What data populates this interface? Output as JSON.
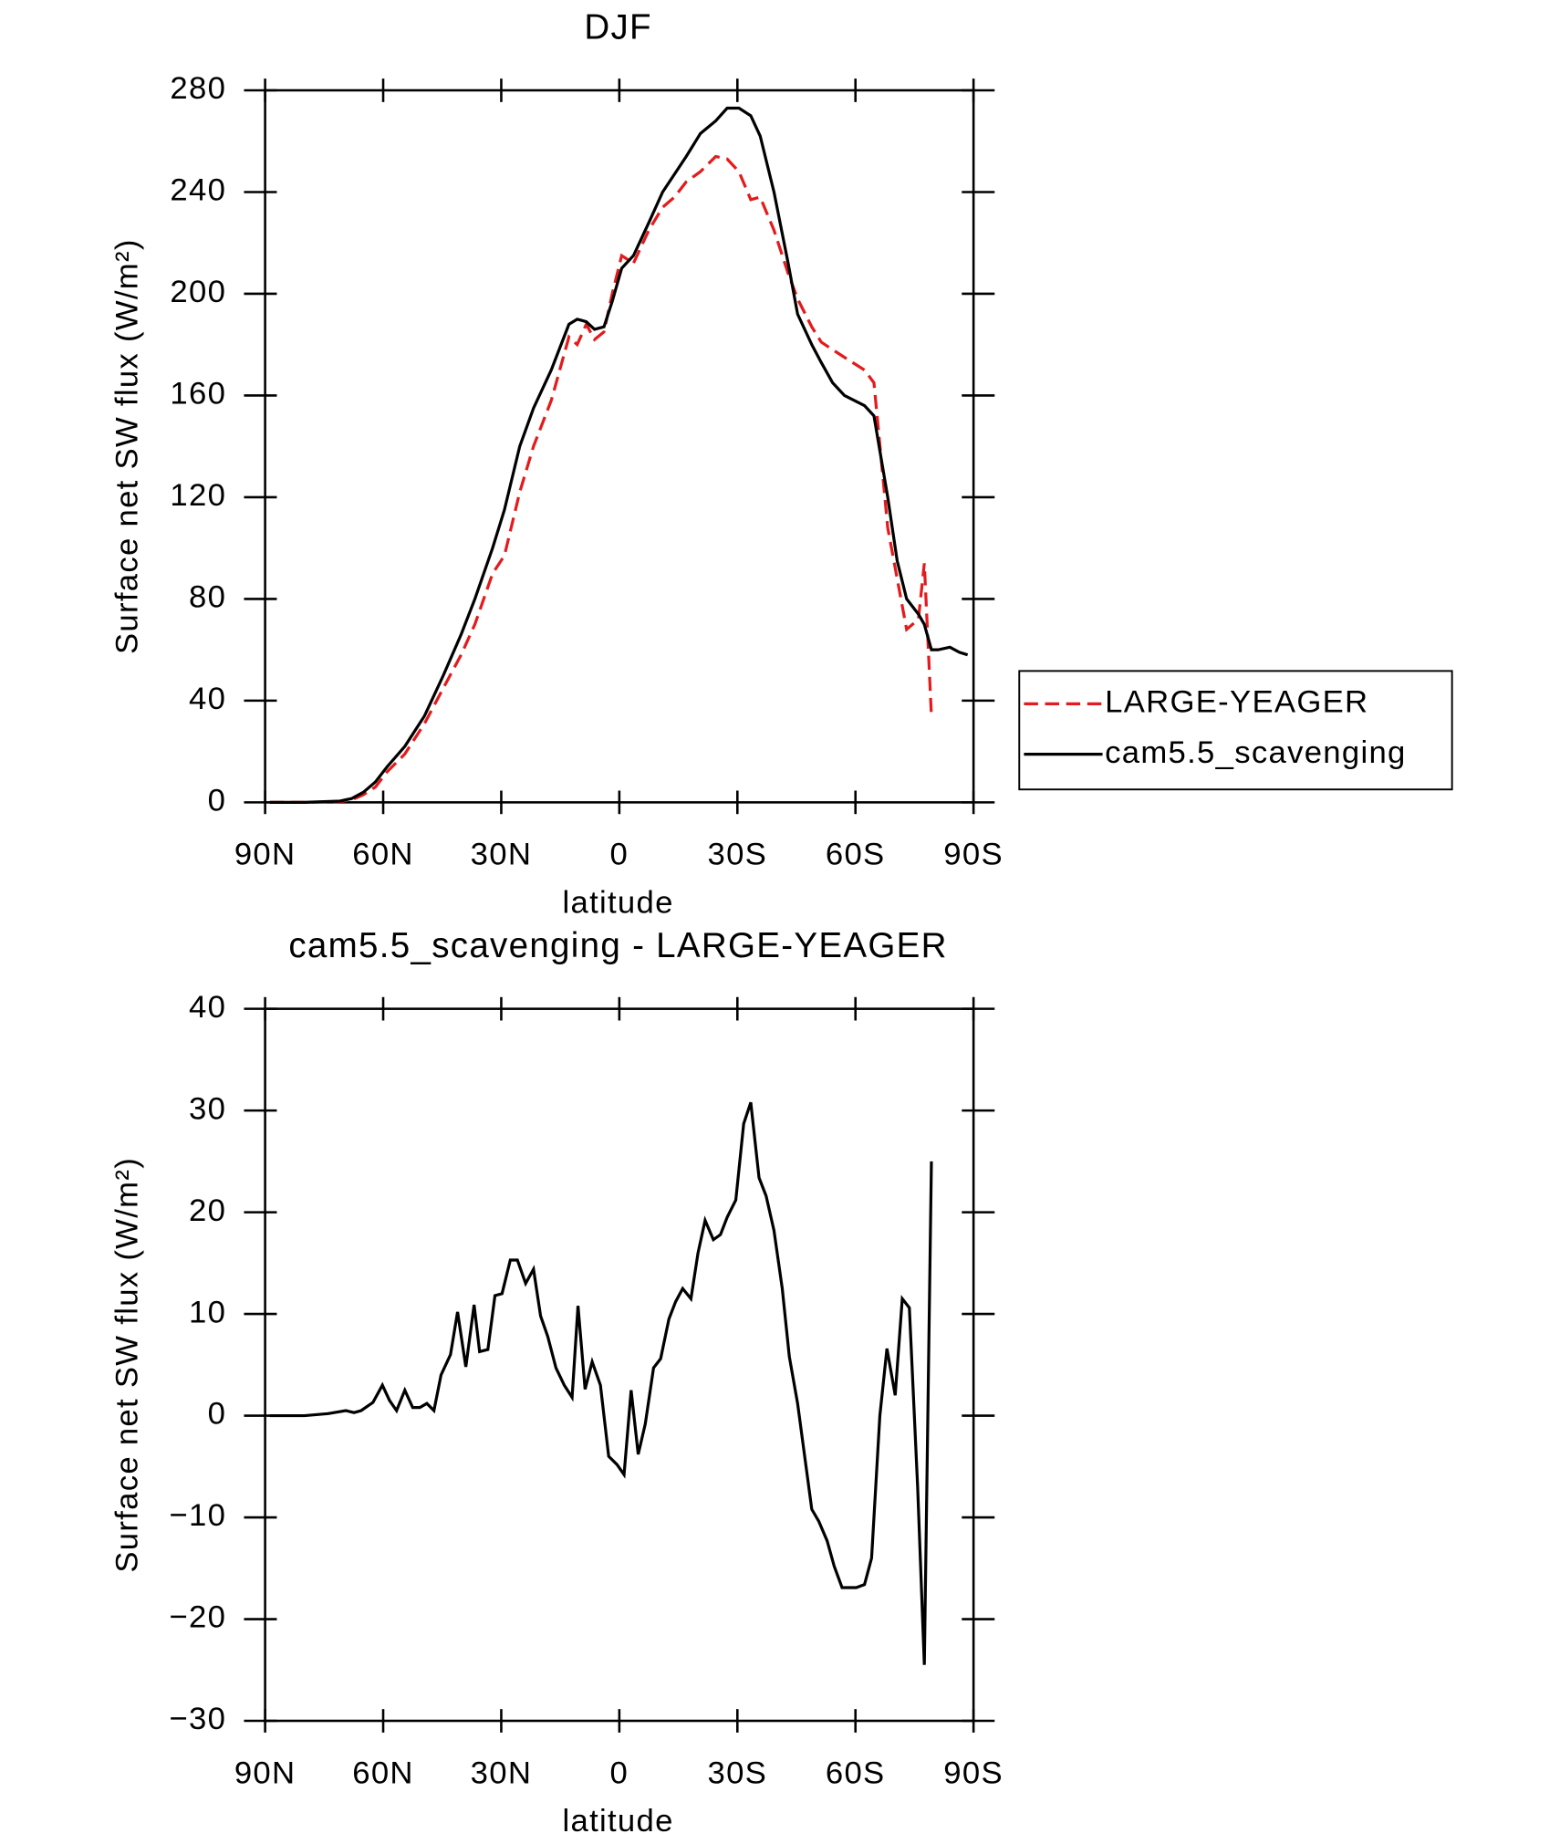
{
  "chart_data": [
    {
      "type": "line",
      "title": "DJF",
      "x_label": "latitude",
      "y_label": "Surface net SW flux (W/m²)",
      "x": [
        88.8,
        80,
        71,
        68,
        65,
        62,
        59,
        54.5,
        49.5,
        44.7,
        40.2,
        36.7,
        32.2,
        29.2,
        25.3,
        21.8,
        17.3,
        12.8,
        10.7,
        8.4,
        6.3,
        3.9,
        1.8,
        -0.6,
        -3.6,
        -7.5,
        -11,
        -14,
        -17,
        -20.6,
        -24.5,
        -27.4,
        -30.4,
        -33.4,
        -35.8,
        -39.3,
        -42.9,
        -45.3,
        -48.9,
        -51.3,
        -54.2,
        -57.2,
        -62.3,
        -64.7,
        -68.2,
        -70.6,
        -73,
        -76,
        -77.5,
        -79.3,
        -81,
        -84,
        -86.4,
        -88.5
      ],
      "series": [
        {
          "name": "LARGE-YEAGER",
          "color": "#e41a1c",
          "dashed": true,
          "values": [
            0,
            0,
            0.3,
            1,
            3,
            6,
            12,
            19,
            31,
            45,
            58,
            70,
            90,
            97,
            122,
            140,
            158,
            183,
            180,
            188,
            182,
            185,
            200,
            215,
            212,
            225,
            234,
            238,
            244,
            248,
            254,
            253,
            248,
            237,
            238,
            225,
            208,
            198,
            187,
            181,
            178,
            175,
            170,
            165,
            108,
            88,
            68,
            72,
            94,
            34,
            null,
            null,
            null,
            null
          ]
        },
        {
          "name": "cam5.5_scavenging",
          "color": "#000000",
          "dashed": false,
          "values": [
            0,
            0,
            0.5,
            1.5,
            4,
            8,
            14,
            22,
            34,
            50,
            66,
            80,
            100,
            115,
            140,
            155,
            170,
            188,
            190,
            189,
            186,
            187,
            197,
            210,
            215,
            228,
            240,
            247,
            254,
            263,
            268,
            273,
            273,
            270,
            262,
            240,
            212,
            192,
            180,
            173,
            165,
            160,
            156,
            152,
            120,
            95,
            80,
            74,
            70,
            60,
            60,
            61,
            59,
            58
          ]
        }
      ],
      "xlim": [
        90,
        -90
      ],
      "xticks": [
        {
          "value": 90,
          "label": "90N"
        },
        {
          "value": 60,
          "label": "60N"
        },
        {
          "value": 30,
          "label": "30N"
        },
        0,
        {
          "value": -30,
          "label": "30S"
        },
        {
          "value": -60,
          "label": "60S"
        },
        {
          "value": -90,
          "label": "90S"
        }
      ],
      "ylim": [
        0,
        280
      ],
      "yticks": [
        0,
        40,
        80,
        120,
        160,
        200,
        240,
        280
      ],
      "legend": "right"
    },
    {
      "type": "line",
      "title": "cam5.5_scavenging - LARGE-YEAGER",
      "x_label": "latitude",
      "y_label": "Surface net SW flux (W/m²)",
      "x": [
        88.8,
        80,
        74,
        69.5,
        67.4,
        65.6,
        62.6,
        60.2,
        58.4,
        56.6,
        54.5,
        52.5,
        50.7,
        48.9,
        47.1,
        45.3,
        42.9,
        41.1,
        39,
        36.9,
        35.5,
        33.4,
        31.6,
        29.8,
        27.7,
        25.9,
        23.8,
        21.8,
        20,
        18.2,
        16.1,
        14,
        12,
        10.5,
        8.7,
        6.9,
        4.8,
        2.7,
        0.6,
        -1.2,
        -3,
        -4.8,
        -6.6,
        -8.7,
        -10.5,
        -12.6,
        -14.3,
        -16.1,
        -18.2,
        -20,
        -21.8,
        -23.9,
        -25.7,
        -27.4,
        -29.6,
        -31.6,
        -33.4,
        -35.5,
        -37.3,
        -39.3,
        -41.4,
        -43.2,
        -45.3,
        -47.1,
        -48.9,
        -50.7,
        -52.8,
        -54.6,
        -56.6,
        -58.4,
        -60.2,
        -62.3,
        -64.1,
        -66.2,
        -68,
        -70.1,
        -71.9,
        -73.7,
        -75.8,
        -77.5,
        -79.3
      ],
      "values": [
        0,
        0,
        0.2,
        0.5,
        0.3,
        0.5,
        1.3,
        3,
        1.5,
        0.5,
        2.5,
        0.8,
        0.8,
        1.2,
        0.5,
        4,
        6,
        10.2,
        4.8,
        10.9,
        6.3,
        6.5,
        11.8,
        12,
        15.3,
        15.3,
        13,
        14.4,
        9.8,
        7.8,
        4.7,
        3,
        1.8,
        10.8,
        2.6,
        5.3,
        3,
        -4,
        -4.8,
        -5.8,
        2.5,
        -3.8,
        -0.8,
        4.7,
        5.6,
        9.5,
        11.2,
        12.5,
        11.5,
        16,
        19.2,
        17.3,
        17.8,
        19.5,
        21.2,
        28.7,
        30.8,
        23.4,
        21.6,
        18.2,
        12.5,
        5.8,
        1.2,
        -4,
        -9.2,
        -10.4,
        -12.3,
        -14.8,
        -16.9,
        -16.9,
        -16.9,
        -16.6,
        -14,
        0,
        6.6,
        2,
        11.5,
        10.6,
        -7,
        -24.5,
        25
      ],
      "color": "#000000",
      "xlim": [
        90,
        -90
      ],
      "xticks": [
        {
          "value": 90,
          "label": "90N"
        },
        {
          "value": 60,
          "label": "60N"
        },
        {
          "value": 30,
          "label": "30N"
        },
        0,
        {
          "value": -30,
          "label": "30S"
        },
        {
          "value": -60,
          "label": "60S"
        },
        {
          "value": -90,
          "label": "90S"
        }
      ],
      "ylim": [
        -30,
        40
      ],
      "yticks": [
        {
          "value": -30,
          "label": "−30"
        },
        {
          "value": -20,
          "label": "−20"
        },
        {
          "value": -10,
          "label": "−10"
        },
        0,
        10,
        20,
        30,
        40
      ]
    }
  ]
}
